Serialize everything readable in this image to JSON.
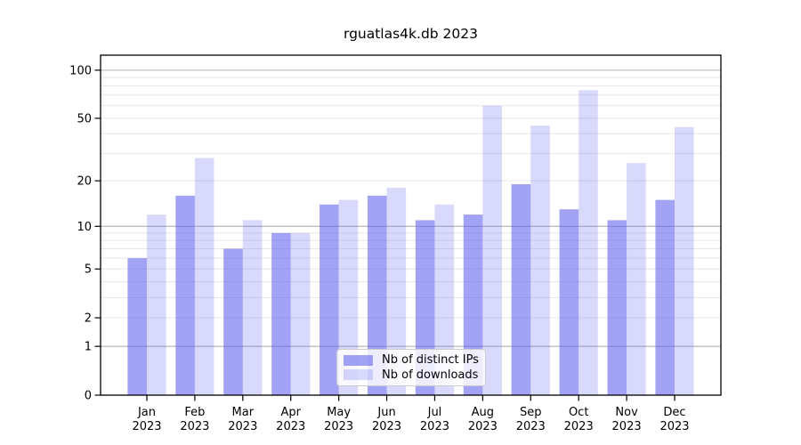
{
  "chart_data": {
    "type": "bar",
    "title": "rguatlas4k.db 2023",
    "categories": [
      "Jan 2023",
      "Feb 2023",
      "Mar 2023",
      "Apr 2023",
      "May 2023",
      "Jun 2023",
      "Jul 2023",
      "Aug 2023",
      "Sep 2023",
      "Oct 2023",
      "Nov 2023",
      "Dec 2023"
    ],
    "series": [
      {
        "name": "Nb of distinct IPs",
        "color_hex": "#6666ee",
        "alpha": 0.6,
        "values": [
          6,
          16,
          7,
          9,
          14,
          16,
          11,
          12,
          19,
          13,
          11,
          15
        ]
      },
      {
        "name": "Nb of downloads",
        "color_hex": "#6666ee",
        "alpha": 0.25,
        "values": [
          12,
          28,
          11,
          9,
          15,
          18,
          14,
          60,
          45,
          75,
          26,
          44
        ]
      }
    ],
    "y_axis": {
      "scale": "log1p",
      "ylim": [
        0,
        124
      ],
      "tick_values": [
        100,
        50,
        20,
        10,
        5,
        2,
        1,
        0
      ],
      "tick_labels": [
        "100",
        "50",
        "20",
        "10",
        "5",
        "2",
        "1",
        "0"
      ],
      "major_gridlines": [
        1,
        10,
        100
      ],
      "minor_gridlines": [
        2,
        3,
        4,
        5,
        6,
        7,
        8,
        9,
        20,
        30,
        40,
        50,
        60,
        70,
        80,
        90
      ]
    },
    "x_axis": {
      "tick_labels": [
        "Jan 2023",
        "Feb 2023",
        "Mar 2023",
        "Apr 2023",
        "May 2023",
        "Jun 2023",
        "Jul 2023",
        "Aug 2023",
        "Sep 2023",
        "Oct 2023",
        "Nov 2023",
        "Dec 2023"
      ]
    },
    "legend": {
      "position": "lower center"
    },
    "grid": true,
    "colors": {
      "bar_base": "#6666ee",
      "major_grid": "#b0b0b0",
      "minor_grid": "#e6e6e6",
      "axis": "#000000",
      "text": "#000000",
      "background": "#ffffff"
    }
  }
}
